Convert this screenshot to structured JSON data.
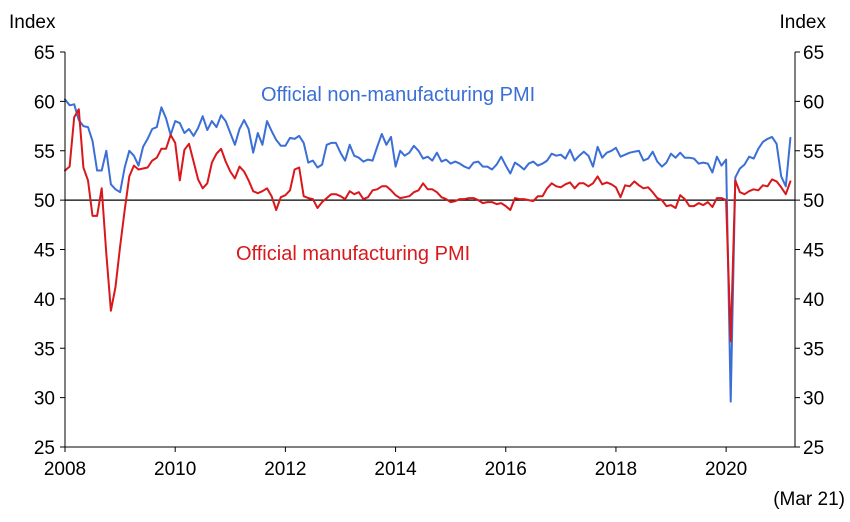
{
  "chart_data": {
    "type": "line",
    "ylabel_left": "Index",
    "ylabel_right": "Index",
    "ylim": [
      25,
      65
    ],
    "yticks": [
      25,
      30,
      35,
      40,
      45,
      50,
      55,
      60,
      65
    ],
    "xlim": [
      2008.0,
      2021.25
    ],
    "xticks": [
      2008,
      2010,
      2012,
      2014,
      2016,
      2018,
      2020
    ],
    "x_end_note": "(Mar 21)",
    "reference_line": 50,
    "colors": {
      "non_manufacturing": "#3b6fd6",
      "manufacturing": "#d9181c",
      "reference": "#000000"
    },
    "series": [
      {
        "name": "Official non-manufacturing PMI",
        "key": "non_manufacturing",
        "start": "2008-01",
        "values": [
          60.2,
          59.6,
          59.7,
          58.1,
          57.5,
          57.4,
          56.0,
          53.0,
          53.0,
          55.0,
          51.6,
          51.1,
          50.8,
          53.3,
          55.0,
          54.5,
          53.5,
          55.4,
          56.2,
          57.2,
          57.4,
          59.4,
          58.3,
          56.6,
          58.0,
          57.8,
          56.8,
          57.2,
          56.5,
          57.3,
          58.5,
          57.1,
          58.0,
          57.4,
          58.6,
          58.0,
          56.8,
          55.6,
          57.2,
          58.1,
          57.2,
          54.8,
          56.8,
          55.6,
          58.0,
          57.0,
          56.1,
          55.5,
          55.5,
          56.3,
          56.2,
          56.5,
          55.8,
          53.8,
          54.0,
          53.3,
          53.6,
          55.6,
          55.8,
          55.8,
          54.8,
          54.0,
          55.6,
          54.5,
          54.3,
          53.9,
          54.1,
          54.0,
          55.4,
          56.7,
          55.6,
          56.4,
          53.4,
          55.0,
          54.5,
          54.8,
          55.5,
          55.0,
          54.2,
          54.4,
          54.0,
          54.8,
          53.9,
          54.1,
          53.7,
          53.9,
          53.7,
          53.4,
          53.2,
          53.8,
          53.9,
          53.4,
          53.4,
          53.1,
          53.6,
          54.4,
          53.5,
          52.7,
          53.8,
          53.5,
          53.1,
          53.7,
          53.9,
          53.5,
          53.7,
          54.0,
          54.7,
          54.5,
          54.6,
          54.2,
          55.1,
          54.0,
          54.5,
          54.9,
          54.5,
          53.4,
          55.4,
          54.3,
          54.8,
          55.0,
          55.3,
          54.4,
          54.6,
          54.8,
          54.9,
          55.0,
          54.0,
          54.2,
          54.9,
          53.9,
          53.4,
          53.8,
          54.7,
          54.3,
          54.8,
          54.3,
          54.3,
          54.2,
          53.7,
          53.8,
          53.7,
          52.8,
          54.4,
          53.5,
          54.1,
          29.6,
          52.3,
          53.2,
          53.6,
          54.4,
          54.2,
          55.2,
          55.9,
          56.2,
          56.4,
          55.7,
          52.4,
          51.4,
          56.3
        ]
      },
      {
        "name": "Official manufacturing PMI",
        "key": "manufacturing",
        "start": "2008-01",
        "values": [
          53.0,
          53.4,
          58.4,
          59.2,
          53.3,
          52.0,
          48.4,
          48.4,
          51.2,
          44.6,
          38.8,
          41.2,
          45.3,
          49.0,
          52.4,
          53.5,
          53.1,
          53.2,
          53.3,
          54.0,
          54.3,
          55.2,
          55.2,
          56.6,
          55.8,
          52.0,
          55.1,
          55.7,
          53.9,
          52.1,
          51.2,
          51.7,
          53.8,
          54.7,
          55.2,
          53.9,
          52.9,
          52.2,
          53.4,
          52.9,
          52.0,
          50.9,
          50.7,
          50.9,
          51.2,
          50.4,
          49.0,
          50.3,
          50.5,
          51.0,
          53.1,
          53.3,
          50.4,
          50.2,
          50.1,
          49.2,
          49.8,
          50.2,
          50.6,
          50.6,
          50.4,
          50.1,
          50.9,
          50.6,
          50.8,
          50.1,
          50.3,
          51.0,
          51.1,
          51.4,
          51.4,
          51.0,
          50.5,
          50.2,
          50.3,
          50.4,
          50.8,
          51.0,
          51.7,
          51.1,
          51.1,
          50.8,
          50.3,
          50.1,
          49.8,
          49.9,
          50.1,
          50.1,
          50.2,
          50.2,
          50.0,
          49.7,
          49.8,
          49.8,
          49.6,
          49.7,
          49.4,
          49.0,
          50.2,
          50.1,
          50.1,
          50.0,
          49.9,
          50.4,
          50.4,
          51.2,
          51.7,
          51.4,
          51.3,
          51.6,
          51.8,
          51.2,
          51.7,
          51.7,
          51.4,
          51.7,
          52.4,
          51.6,
          51.8,
          51.6,
          51.3,
          50.3,
          51.5,
          51.4,
          51.9,
          51.5,
          51.2,
          51.3,
          50.8,
          50.2,
          50.0,
          49.4,
          49.5,
          49.2,
          50.5,
          50.1,
          49.4,
          49.4,
          49.7,
          49.5,
          49.8,
          49.3,
          50.2,
          50.2,
          50.0,
          35.7,
          52.0,
          50.8,
          50.6,
          50.9,
          51.1,
          51.0,
          51.5,
          51.4,
          52.1,
          51.9,
          51.3,
          50.6,
          51.9
        ]
      }
    ],
    "annotations": [
      {
        "text": "Official non-manufacturing PMI",
        "series": "non_manufacturing"
      },
      {
        "text": "Official manufacturing PMI",
        "series": "manufacturing"
      }
    ]
  }
}
